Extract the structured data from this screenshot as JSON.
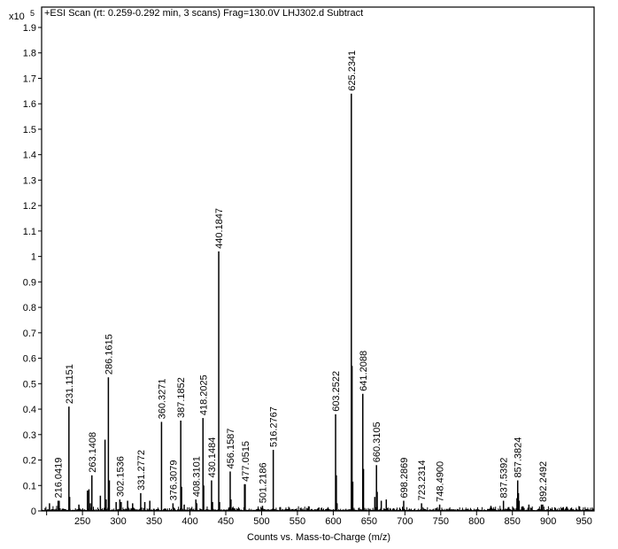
{
  "chart_data": {
    "type": "bar",
    "title": "+ESI Scan (rt: 0.259-0.292 min, 3 scans) Frag=130.0V LHJ302.d  Subtract",
    "xlabel": "Counts vs. Mass-to-Charge (m/z)",
    "ylabel_multiplier": "x10",
    "ylabel_exponent": "5",
    "xlim": [
      193,
      964
    ],
    "ylim": [
      0,
      1.98
    ],
    "x_ticks": [
      250,
      300,
      350,
      400,
      450,
      500,
      550,
      600,
      650,
      700,
      750,
      800,
      850,
      900,
      950
    ],
    "x_minor_ticks": [
      200
    ],
    "y_ticks": [
      0,
      0.1,
      0.2,
      0.3,
      0.4,
      0.5,
      0.6,
      0.7,
      0.8,
      0.9,
      1,
      1.1,
      1.2,
      1.3,
      1.4,
      1.5,
      1.6,
      1.7,
      1.8,
      1.9
    ],
    "labeled_peaks": [
      {
        "mz": 216.0419,
        "label": "216.0419",
        "y": 0.04
      },
      {
        "mz": 231.1151,
        "label": "231.1151",
        "y": 0.41
      },
      {
        "mz": 263.1408,
        "label": "263.1408",
        "y": 0.14
      },
      {
        "mz": 286.1615,
        "label": "286.1615",
        "y": 0.525
      },
      {
        "mz": 302.1536,
        "label": "302.1536",
        "y": 0.045
      },
      {
        "mz": 331.2772,
        "label": "331.2772",
        "y": 0.07
      },
      {
        "mz": 360.3271,
        "label": "360.3271",
        "y": 0.35
      },
      {
        "mz": 376.3079,
        "label": "376.3079",
        "y": 0.03
      },
      {
        "mz": 387.1852,
        "label": "387.1852",
        "y": 0.355
      },
      {
        "mz": 408.3101,
        "label": "408.3101",
        "y": 0.045
      },
      {
        "mz": 418.2025,
        "label": "418.2025",
        "y": 0.365
      },
      {
        "mz": 430.1484,
        "label": "430.1484",
        "y": 0.12
      },
      {
        "mz": 440.1847,
        "label": "440.1847",
        "y": 1.02
      },
      {
        "mz": 456.1587,
        "label": "456.1587",
        "y": 0.155
      },
      {
        "mz": 477.0515,
        "label": "477.0515",
        "y": 0.105
      },
      {
        "mz": 501.2186,
        "label": "501.2186",
        "y": 0.02
      },
      {
        "mz": 516.2767,
        "label": "516.2767",
        "y": 0.24
      },
      {
        "mz": 603.2522,
        "label": "603.2522",
        "y": 0.38
      },
      {
        "mz": 625.2341,
        "label": "625.2341",
        "y": 1.64
      },
      {
        "mz": 641.2088,
        "label": "641.2088",
        "y": 0.46
      },
      {
        "mz": 660.3105,
        "label": "660.3105",
        "y": 0.18
      },
      {
        "mz": 698.2869,
        "label": "698.2869",
        "y": 0.04
      },
      {
        "mz": 723.2314,
        "label": "723.2314",
        "y": 0.03
      },
      {
        "mz": 748.49,
        "label": "748.4900",
        "y": 0.025
      },
      {
        "mz": 837.5392,
        "label": "837.5392",
        "y": 0.04
      },
      {
        "mz": 857.3824,
        "label": "857.3824",
        "y": 0.12
      },
      {
        "mz": 892.2492,
        "label": "892.2492",
        "y": 0.025
      }
    ],
    "unlabeled_peaks": [
      {
        "mz": 204,
        "y": 0.03
      },
      {
        "mz": 217.5,
        "y": 0.04
      },
      {
        "mz": 232.1,
        "y": 0.055
      },
      {
        "mz": 245,
        "y": 0.025
      },
      {
        "mz": 257,
        "y": 0.08
      },
      {
        "mz": 259,
        "y": 0.085
      },
      {
        "mz": 261,
        "y": 0.03
      },
      {
        "mz": 275,
        "y": 0.06
      },
      {
        "mz": 281.5,
        "y": 0.28
      },
      {
        "mz": 283,
        "y": 0.045
      },
      {
        "mz": 287.5,
        "y": 0.12
      },
      {
        "mz": 297,
        "y": 0.035
      },
      {
        "mz": 304,
        "y": 0.035
      },
      {
        "mz": 313,
        "y": 0.04
      },
      {
        "mz": 320,
        "y": 0.03
      },
      {
        "mz": 337,
        "y": 0.035
      },
      {
        "mz": 344,
        "y": 0.04
      },
      {
        "mz": 388.3,
        "y": 0.095
      },
      {
        "mz": 392,
        "y": 0.025
      },
      {
        "mz": 409.5,
        "y": 0.03
      },
      {
        "mz": 419.2,
        "y": 0.1
      },
      {
        "mz": 431.5,
        "y": 0.035
      },
      {
        "mz": 441.3,
        "y": 0.035
      },
      {
        "mz": 457.2,
        "y": 0.045
      },
      {
        "mz": 476.2,
        "y": 0.105
      },
      {
        "mz": 604.3,
        "y": 0.14
      },
      {
        "mz": 605.3,
        "y": 0.03
      },
      {
        "mz": 626.2,
        "y": 0.57
      },
      {
        "mz": 627.2,
        "y": 0.115
      },
      {
        "mz": 642.2,
        "y": 0.165
      },
      {
        "mz": 658,
        "y": 0.055
      },
      {
        "mz": 661.3,
        "y": 0.075
      },
      {
        "mz": 667,
        "y": 0.04
      },
      {
        "mz": 674,
        "y": 0.045
      },
      {
        "mz": 820,
        "y": 0.02
      },
      {
        "mz": 856.4,
        "y": 0.05
      },
      {
        "mz": 858.4,
        "y": 0.07
      },
      {
        "mz": 859.4,
        "y": 0.04
      },
      {
        "mz": 873,
        "y": 0.025
      },
      {
        "mz": 890.5,
        "y": 0.025
      },
      {
        "mz": 921,
        "y": 0.015
      }
    ]
  }
}
